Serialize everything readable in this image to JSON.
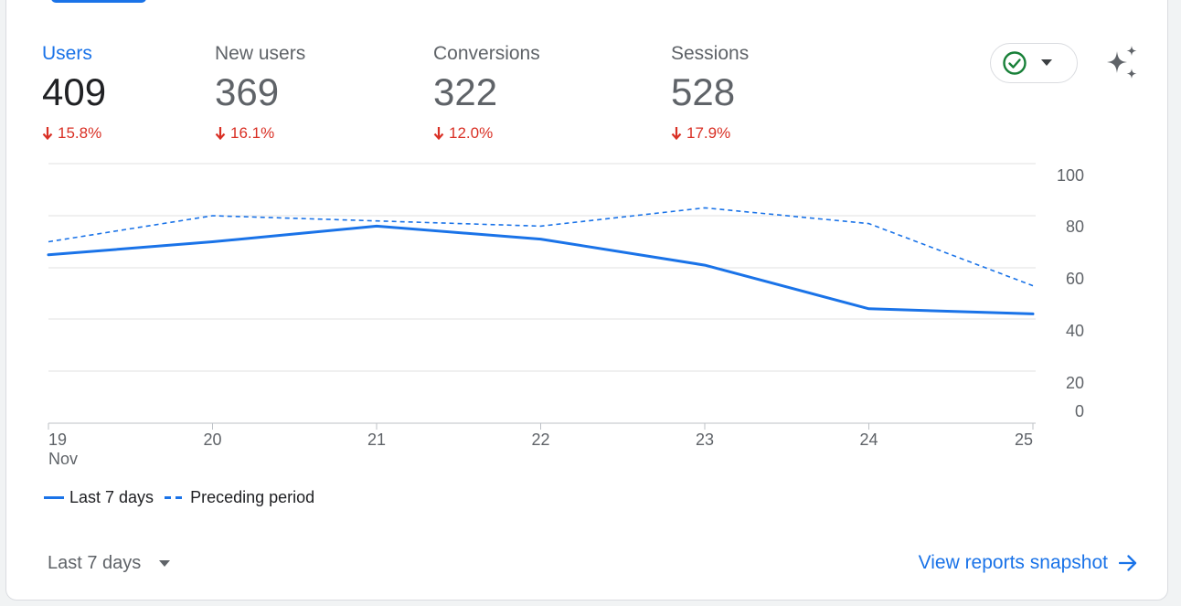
{
  "metrics": [
    {
      "label": "Users",
      "value": "409",
      "change": "15.8%",
      "active": true
    },
    {
      "label": "New users",
      "value": "369",
      "change": "16.1%",
      "active": false
    },
    {
      "label": "Conversions",
      "value": "322",
      "change": "12.0%",
      "active": false
    },
    {
      "label": "Sessions",
      "value": "528",
      "change": "17.9%",
      "active": false
    }
  ],
  "status_icon": "check-circle-icon",
  "ai_icon": "sparkle-icon",
  "colors": {
    "accent": "#1a73e8",
    "negative": "#d93025",
    "status_green": "#188038",
    "gridline": "#e0e0e0",
    "muted_text": "#5f6368"
  },
  "chart_data": {
    "type": "line",
    "categories": [
      "19",
      "20",
      "21",
      "22",
      "23",
      "24",
      "25"
    ],
    "x_tick_labels": [
      "19",
      "20",
      "21",
      "22",
      "23",
      "24",
      "25"
    ],
    "x_sub_label": "Nov",
    "y_tick_labels": [
      "0",
      "20",
      "40",
      "60",
      "80",
      "100"
    ],
    "ylim": [
      0,
      100
    ],
    "series": [
      {
        "name": "Last 7 days",
        "style": "solid",
        "color": "#1a73e8",
        "values": [
          65,
          70,
          76,
          71,
          61,
          44,
          42
        ]
      },
      {
        "name": "Preceding period",
        "style": "dashed",
        "color": "#1a73e8",
        "values": [
          70,
          80,
          78,
          76,
          83,
          77,
          53
        ]
      }
    ],
    "grid": true,
    "legend": "bottom-left"
  },
  "footer": {
    "date_range_label": "Last 7 days",
    "view_link_label": "View reports snapshot"
  }
}
